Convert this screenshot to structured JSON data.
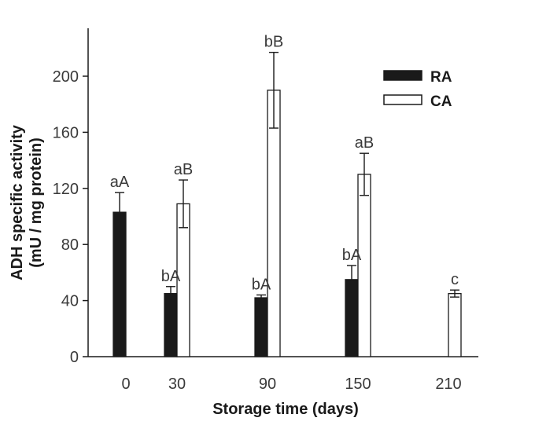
{
  "chart_data": {
    "type": "bar",
    "xlabel": "Storage time (days)",
    "ylabel": [
      "ADH specific activity",
      "(mU / mg protein)"
    ],
    "ylim": [
      0,
      230
    ],
    "yticks": [
      0,
      40,
      80,
      120,
      160,
      200
    ],
    "categories": [
      "0",
      "30",
      "90",
      "150",
      "210"
    ],
    "legend_position": "top-right",
    "colors": {
      "RA": "#1a1a1a",
      "CA": "#ffffff",
      "stroke": "#1a1a1a"
    },
    "series": [
      {
        "name": "RA",
        "values": [
          103,
          45,
          42,
          55,
          null
        ],
        "errors": [
          14,
          5,
          2,
          10,
          null
        ],
        "labels": [
          "aA",
          "bA",
          "bA",
          "bA",
          ""
        ]
      },
      {
        "name": "CA",
        "values": [
          null,
          109,
          190,
          130,
          45
        ],
        "errors": [
          null,
          17,
          27,
          15,
          2.5
        ],
        "labels": [
          "",
          "aB",
          "bB",
          "aB",
          "c"
        ]
      }
    ]
  }
}
